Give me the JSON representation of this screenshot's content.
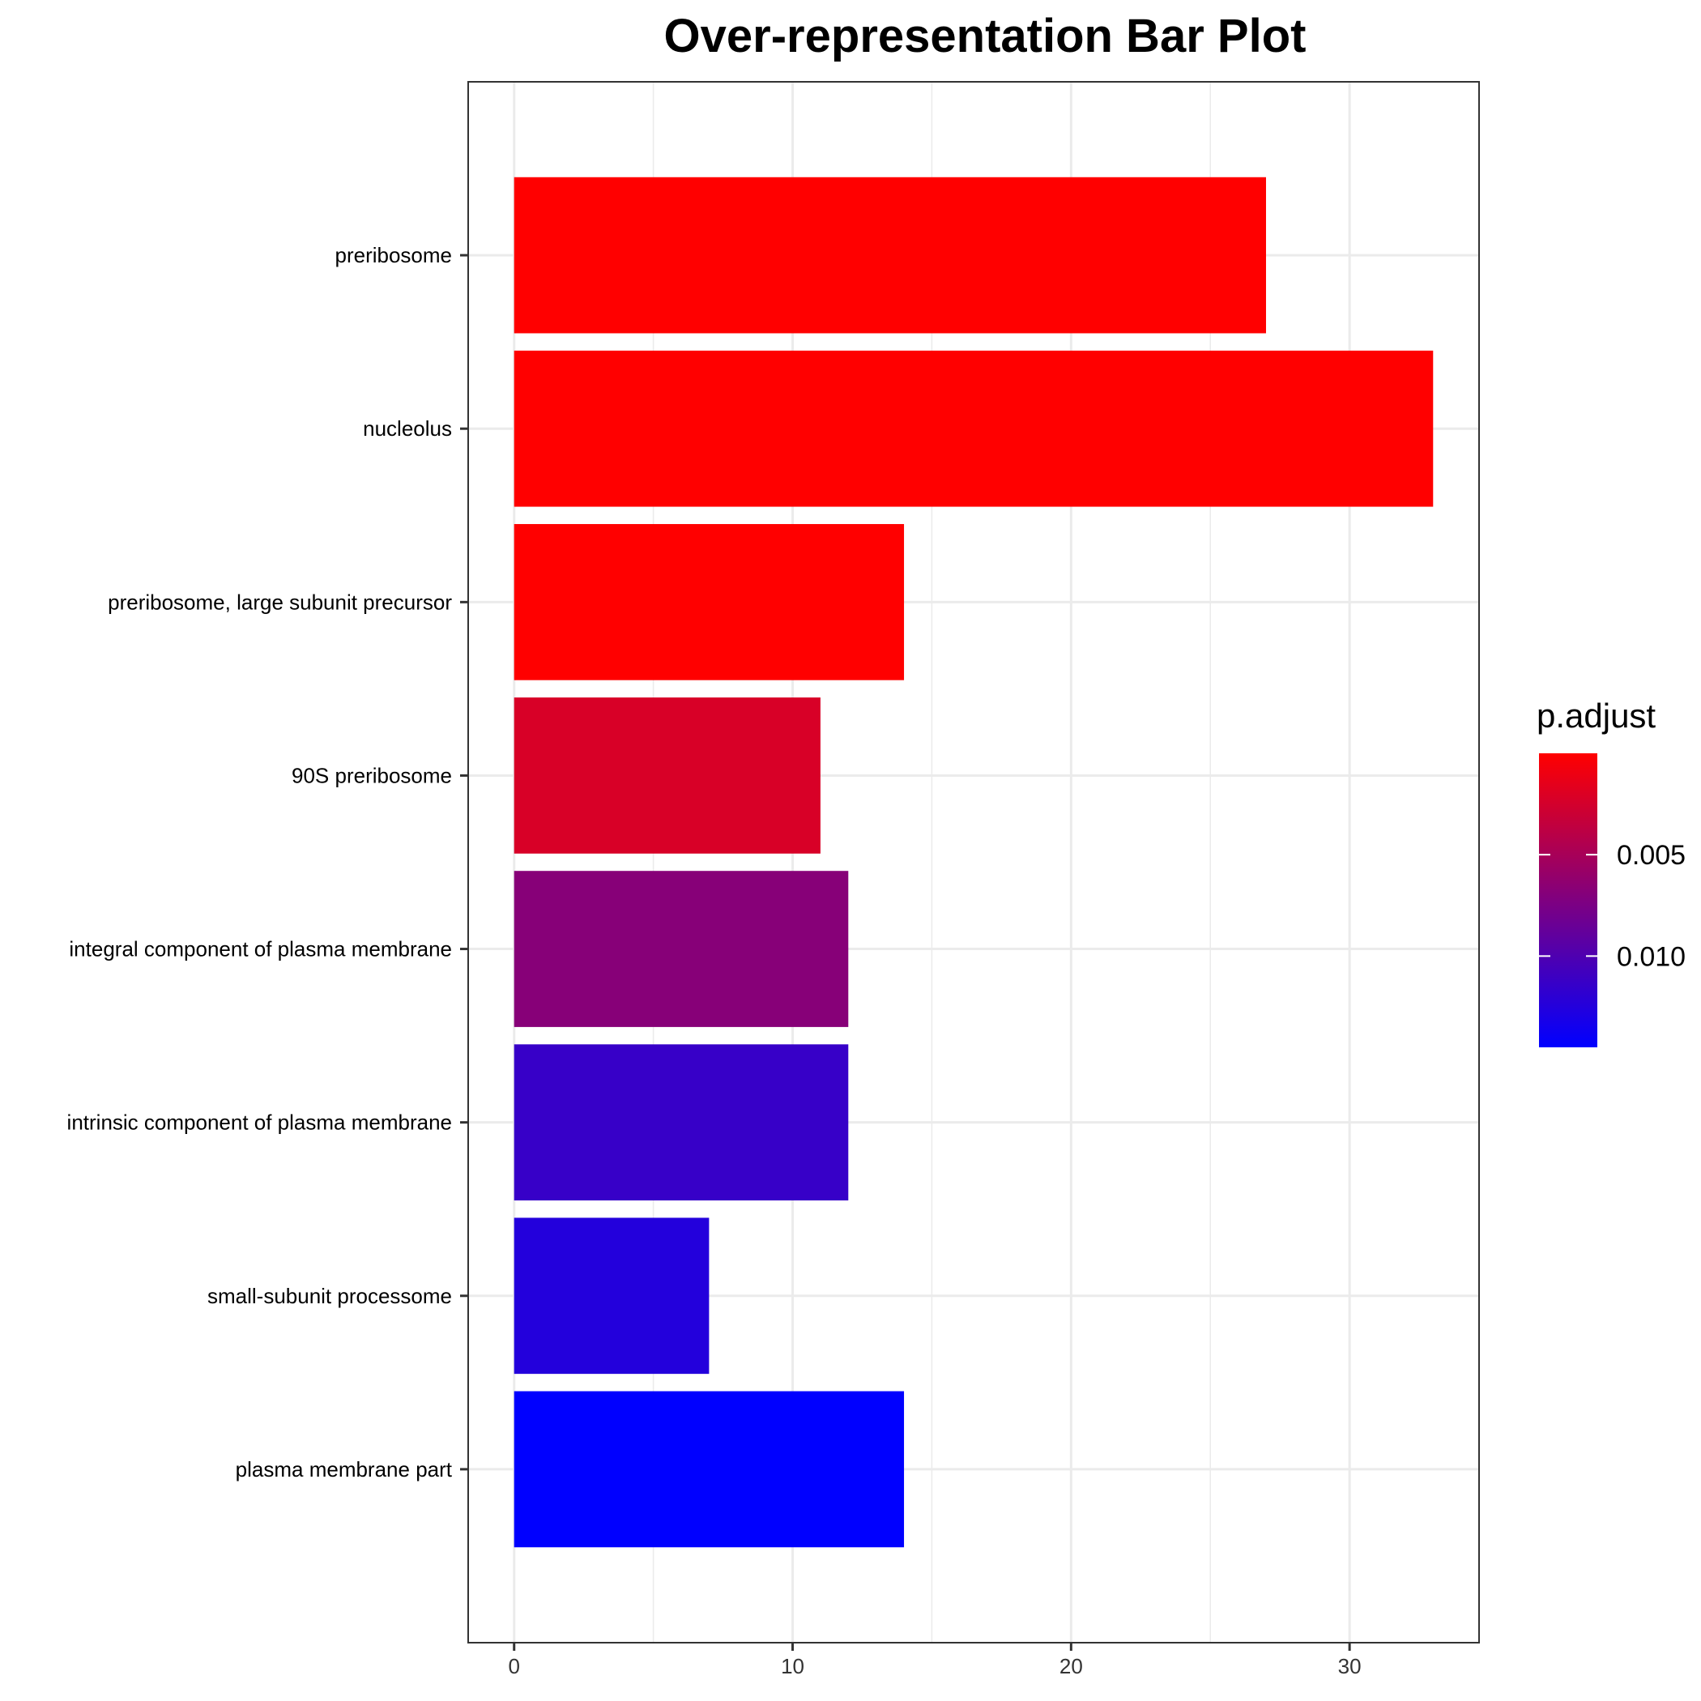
{
  "chart_data": {
    "type": "bar",
    "orientation": "horizontal",
    "title": "Over-representation Bar Plot",
    "xlabel": "",
    "ylabel": "",
    "categories": [
      "preribosome",
      "nucleolus",
      "preribosome, large subunit precursor",
      "90S preribosome",
      "integral component of plasma membrane",
      "intrinsic component of plasma membrane",
      "small-subunit processome",
      "plasma membrane part"
    ],
    "values": [
      27,
      33,
      14,
      11,
      12,
      12,
      7,
      14
    ],
    "p_adjust": [
      0.0,
      0.0,
      0.0,
      0.0022,
      0.0068,
      0.0114,
      0.0125,
      0.0145
    ],
    "xlim": [
      -1.65,
      34.65
    ],
    "xticks": [
      0,
      10,
      20,
      30
    ],
    "grid": true,
    "legend": {
      "title": "p.adjust",
      "position": "right",
      "range": [
        0.0,
        0.0145
      ],
      "ticks": [
        {
          "value": 0.005,
          "label": "0.005"
        },
        {
          "value": 0.01,
          "label": "0.010"
        }
      ],
      "low_color": "#ff0000",
      "high_color": "#0000ff"
    }
  }
}
